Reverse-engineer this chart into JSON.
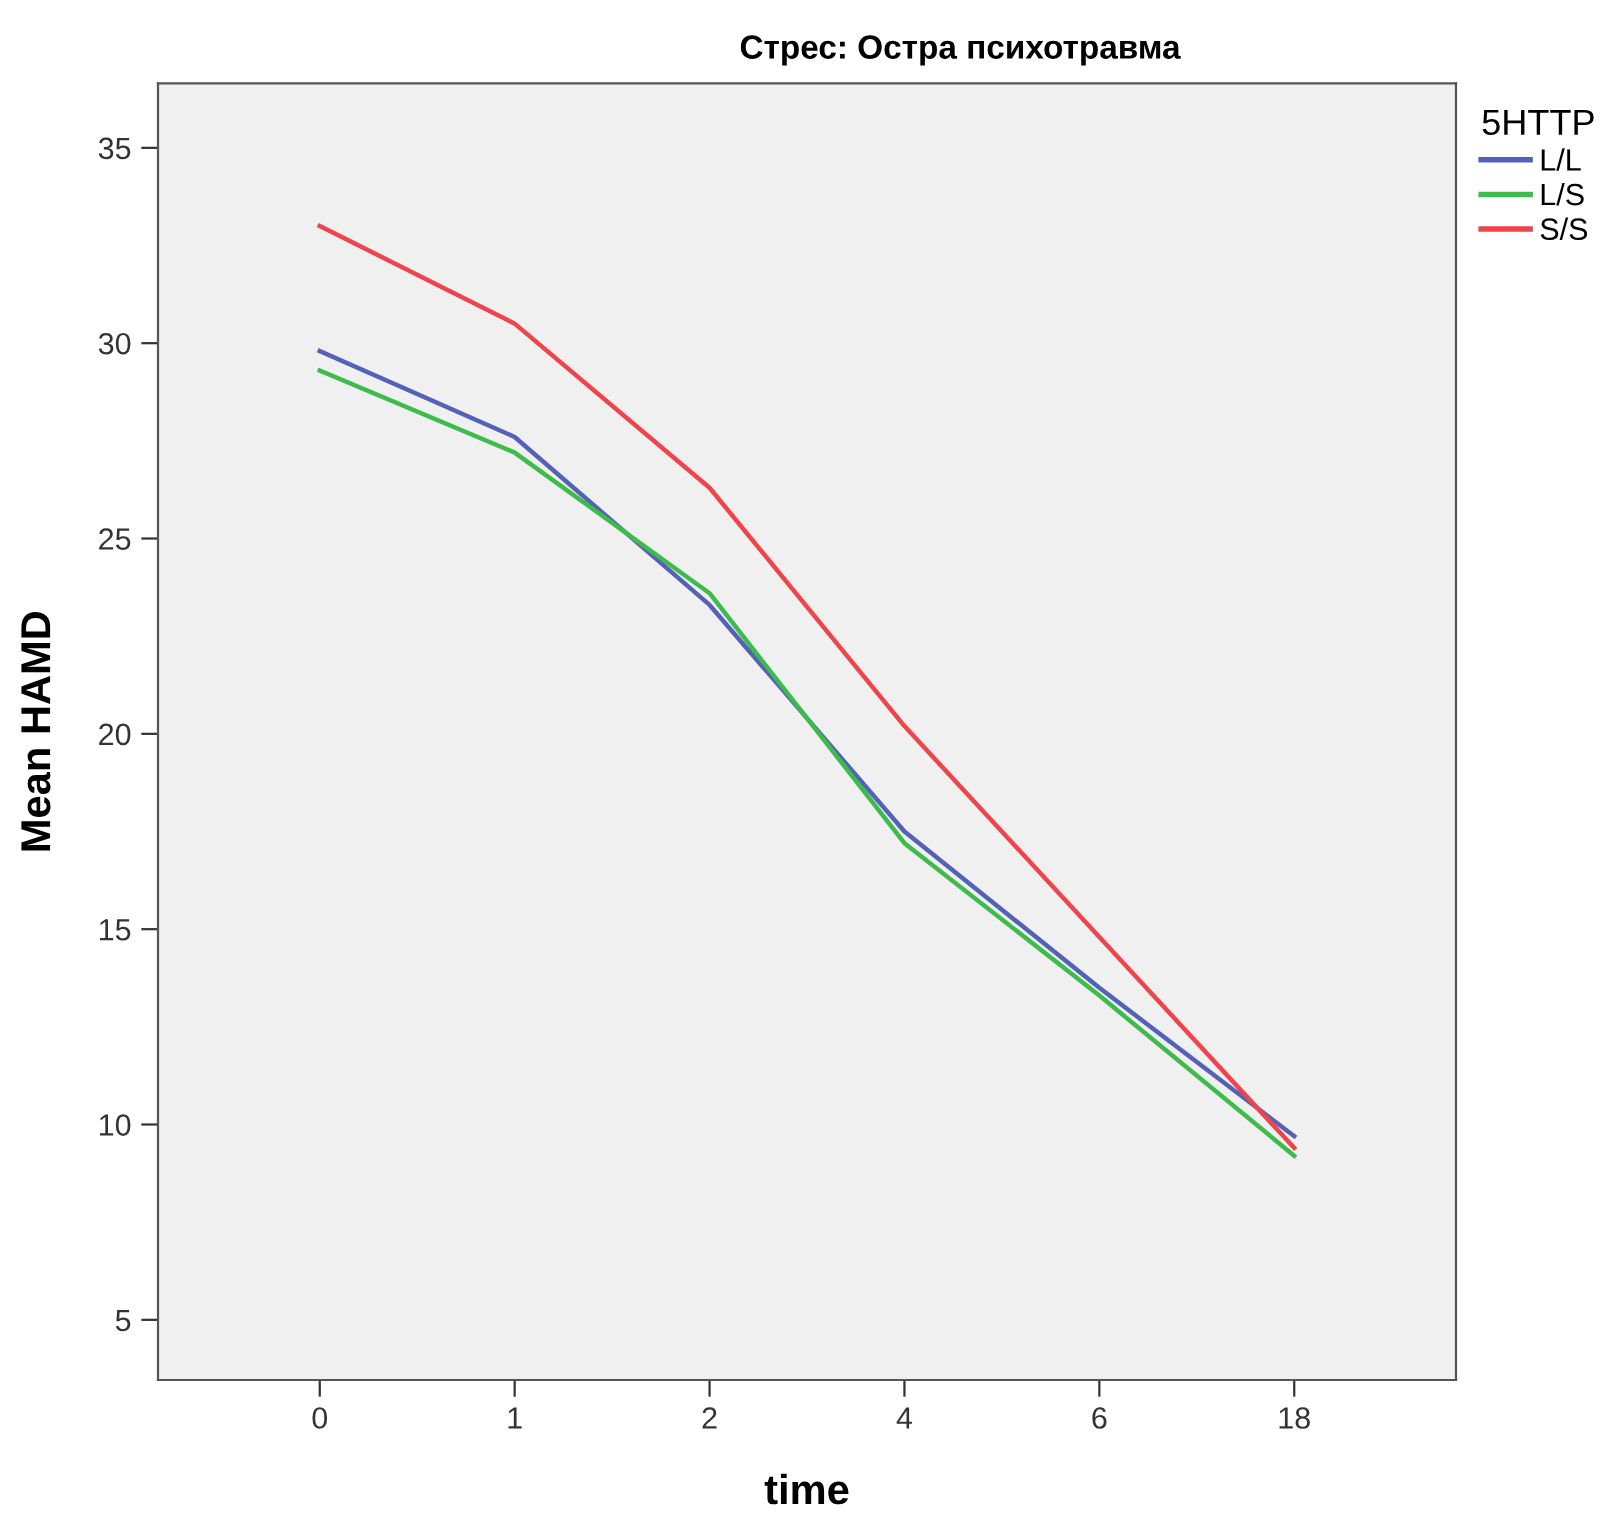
{
  "chart_data": {
    "type": "line",
    "title": "Стрес: Остра психотравма",
    "xlabel": "time",
    "ylabel": "Mean HAMD",
    "legend_title": "5HTTP",
    "categories": [
      "0",
      "1",
      "2",
      "4",
      "6",
      "18"
    ],
    "series": [
      {
        "name": "L/L",
        "color": "#5461b9",
        "values": [
          29.8,
          27.6,
          23.3,
          17.5,
          13.5,
          9.7
        ]
      },
      {
        "name": "L/S",
        "color": "#3dbb4b",
        "values": [
          29.3,
          27.2,
          23.6,
          17.2,
          13.3,
          9.2
        ]
      },
      {
        "name": "S/S",
        "color": "#f0434a",
        "values": [
          33.0,
          30.5,
          26.3,
          20.2,
          14.8,
          9.4
        ]
      }
    ],
    "ylim": [
      3.46,
      36.65
    ],
    "yticks": [
      5,
      10,
      15,
      20,
      25,
      30,
      35
    ],
    "grid": false,
    "legend": "right",
    "marker": "none",
    "line_style": "solid"
  }
}
